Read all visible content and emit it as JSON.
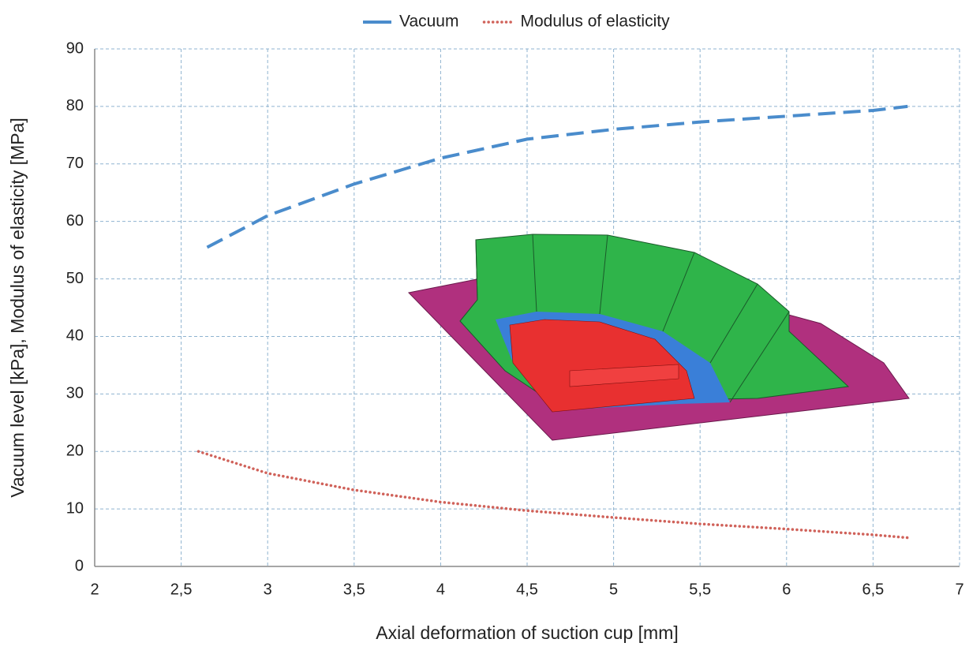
{
  "chart_data": {
    "type": "line",
    "x_label": "Axial deformation of suction cup [mm]",
    "y_label": "Vacuum level [kPa],  Modulus of elasticity [MPa]",
    "xlim": [
      2,
      7
    ],
    "xticks": [
      2,
      {
        "value": 2.5,
        "label": "2,5"
      },
      3,
      {
        "value": 3.5,
        "label": "3,5"
      },
      4,
      {
        "value": 4.5,
        "label": "4,5"
      },
      5,
      {
        "value": 5.5,
        "label": "5,5"
      },
      6,
      {
        "value": 6.5,
        "label": "6,5"
      },
      7
    ],
    "ylim": [
      0,
      90
    ],
    "yticks": [
      0,
      10,
      20,
      30,
      40,
      50,
      60,
      70,
      80,
      90
    ],
    "grid": true,
    "legend": "top",
    "series": [
      {
        "name": "Vacuum",
        "color": "#4a8ccc",
        "style": "dashed",
        "x": [
          2.65,
          3.0,
          3.5,
          4.0,
          4.5,
          5.0,
          5.5,
          6.0,
          6.5,
          6.7
        ],
        "values": [
          55.5,
          61,
          66.5,
          71,
          74.3,
          76,
          77.3,
          78.3,
          79.3,
          80
        ]
      },
      {
        "name": "Modulus of elasticity",
        "color": "#d0625a",
        "style": "dotted",
        "x": [
          2.6,
          3.0,
          3.5,
          4.0,
          4.5,
          5.0,
          5.5,
          6.0,
          6.5,
          6.7
        ],
        "values": [
          20,
          16.2,
          13.3,
          11.2,
          9.7,
          8.5,
          7.4,
          6.5,
          5.5,
          5
        ]
      }
    ]
  }
}
